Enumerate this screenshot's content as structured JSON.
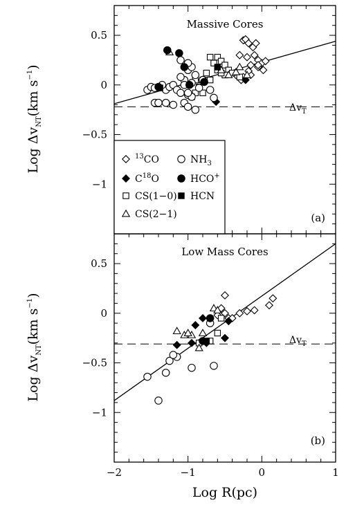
{
  "figure": {
    "x_label": "Log R(pc)",
    "y_label": "Log Δv",
    "y_label_sub": "NT",
    "y_label_unit": "(km s",
    "y_label_exp": "−1",
    "y_label_close": ")"
  },
  "chart_data": [
    {
      "type": "scatter",
      "panel": "a",
      "title": "Massive Cores",
      "panel_label": "(a)",
      "xlim": [
        -2,
        1
      ],
      "ylim": [
        -1.5,
        0.8
      ],
      "x_ticks": [
        "−2",
        "−1",
        "0",
        "1"
      ],
      "y_ticks": [
        "0.5",
        "0",
        "−0.5",
        "−1"
      ],
      "y_tick_values": [
        0.5,
        0,
        -0.5,
        -1
      ],
      "thermal_line": {
        "y": -0.22,
        "label": "Δv",
        "label_sub": "T"
      },
      "fit_line": {
        "x": [
          -2,
          1
        ],
        "y": [
          -0.19,
          0.44
        ]
      },
      "legend": [
        {
          "marker": "diamond-open",
          "pre": "",
          "sup": "13",
          "text": "CO",
          "sup2": ""
        },
        {
          "marker": "diamond-filled",
          "pre": "C",
          "sup": "18",
          "text": "O",
          "sup2": ""
        },
        {
          "marker": "square-open",
          "pre": "",
          "sup": "",
          "text": "CS(1−0)",
          "sup2": ""
        },
        {
          "marker": "triangle-open",
          "pre": "",
          "sup": "",
          "text": "CS(2−1)",
          "sup2": ""
        },
        {
          "marker": "circle-open",
          "pre": "",
          "sup": "",
          "text": "NH",
          "sub": "3",
          "sup2": ""
        },
        {
          "marker": "circle-filled",
          "pre": "",
          "sup": "",
          "text": "HCO",
          "sup2": "+"
        },
        {
          "marker": "square-filled",
          "pre": "",
          "sup": "",
          "text": "HCN",
          "sup2": ""
        }
      ],
      "series": [
        {
          "marker": "diamond-open",
          "x": [
            -0.25,
            -0.22,
            -0.18,
            -0.12,
            -0.08,
            -0.3,
            -0.2,
            -0.1,
            -0.05,
            0.0,
            -0.15,
            -0.05,
            0.02,
            -0.35,
            -0.25,
            -0.15,
            -0.05,
            0.05,
            -0.28,
            -0.18
          ],
          "y": [
            0.45,
            0.46,
            0.42,
            0.38,
            0.42,
            0.3,
            0.28,
            0.3,
            0.25,
            0.22,
            0.2,
            0.18,
            0.15,
            0.1,
            0.08,
            0.1,
            0.2,
            0.24,
            0.05,
            0.14
          ]
        },
        {
          "marker": "diamond-filled",
          "x": [
            -0.62,
            -0.22
          ],
          "y": [
            -0.17,
            0.05
          ]
        },
        {
          "marker": "square-open",
          "x": [
            -0.7,
            -0.6,
            -0.65,
            -0.55,
            -0.5,
            -0.6,
            -0.45,
            -0.75,
            -0.7,
            -0.8,
            -0.9,
            -1.0,
            -0.85,
            -0.9,
            -0.95,
            -0.8,
            -0.5,
            -0.55,
            -0.4,
            -0.3
          ],
          "y": [
            0.28,
            0.28,
            0.22,
            0.24,
            0.2,
            0.15,
            0.15,
            0.12,
            0.05,
            0.05,
            0.05,
            0.0,
            -0.02,
            -0.08,
            -0.12,
            -0.08,
            0.1,
            0.12,
            0.12,
            0.08
          ]
        },
        {
          "marker": "triangle-open",
          "x": [
            -1.25,
            -0.35,
            -0.45,
            -0.55,
            -0.3,
            -0.2,
            -0.8
          ],
          "y": [
            0.33,
            0.13,
            0.1,
            0.15,
            0.18,
            0.1,
            0.05
          ]
        },
        {
          "marker": "circle-open",
          "x": [
            -1.55,
            -1.5,
            -1.45,
            -1.4,
            -1.3,
            -1.25,
            -1.2,
            -1.15,
            -1.1,
            -1.05,
            -1.0,
            -0.95,
            -1.0,
            -0.9,
            -1.05,
            -1.1,
            -1.0,
            -0.95,
            -1.2,
            -1.3,
            -1.45,
            -1.35,
            -1.1,
            -1.0,
            -0.9,
            -0.8,
            -0.7,
            -0.65,
            -1.0,
            -0.95,
            -1.05,
            -0.85
          ],
          "y": [
            -0.05,
            -0.02,
            -0.18,
            -0.18,
            -0.05,
            -0.02,
            0.0,
            -0.05,
            -0.08,
            -0.18,
            -0.1,
            -0.12,
            -0.22,
            -0.25,
            0.05,
            0.08,
            0.15,
            0.18,
            -0.2,
            -0.18,
            -0.03,
            0.0,
            0.25,
            0.22,
            0.1,
            0.05,
            -0.05,
            -0.13,
            -0.08,
            0.02,
            0.0,
            -0.03
          ]
        },
        {
          "marker": "circle-filled",
          "x": [
            -1.28,
            -1.12,
            -1.05,
            -0.98,
            -0.78,
            -1.4
          ],
          "y": [
            0.35,
            0.32,
            0.18,
            0.0,
            0.03,
            -0.02
          ]
        },
        {
          "marker": "square-filled",
          "x": [
            -1.38,
            -0.6
          ],
          "y": [
            -0.03,
            0.18
          ]
        }
      ]
    },
    {
      "type": "scatter",
      "panel": "b",
      "title": "Low Mass Cores",
      "panel_label": "(b)",
      "xlim": [
        -2,
        1
      ],
      "ylim": [
        -1.5,
        0.8
      ],
      "x_ticks": [
        "−2",
        "−1",
        "0",
        "1"
      ],
      "y_ticks": [
        "0.5",
        "0",
        "−0.5",
        "−1"
      ],
      "y_tick_values": [
        0.5,
        0,
        -0.5,
        -1
      ],
      "thermal_line": {
        "y": -0.31,
        "label": "Δv",
        "label_sub": "T"
      },
      "fit_line": {
        "x": [
          -2,
          1
        ],
        "y": [
          -0.88,
          0.7
        ]
      },
      "series": [
        {
          "marker": "diamond-open",
          "x": [
            -0.5,
            -0.55,
            -0.5,
            -0.45,
            -0.4,
            -0.3,
            -0.2,
            -0.1,
            0.1,
            0.15,
            -0.6
          ],
          "y": [
            0.18,
            0.05,
            0.0,
            -0.05,
            -0.05,
            0.0,
            0.02,
            0.03,
            0.08,
            0.15,
            -0.02
          ]
        },
        {
          "marker": "diamond-filled",
          "x": [
            -0.9,
            -0.85,
            -0.75,
            -0.95,
            -1.15,
            -0.5,
            -0.45,
            -0.8
          ],
          "y": [
            -0.12,
            -0.3,
            -0.3,
            -0.3,
            -0.32,
            -0.25,
            -0.08,
            -0.05
          ]
        },
        {
          "marker": "square-open",
          "x": [
            -0.85,
            -0.7,
            -0.6,
            -0.55
          ],
          "y": [
            -0.3,
            -0.28,
            -0.2,
            -0.05
          ]
        },
        {
          "marker": "triangle-open",
          "x": [
            -1.15,
            -1.05,
            -0.95,
            -1.0,
            -0.85,
            -0.65,
            -0.6,
            -0.8
          ],
          "y": [
            -0.18,
            -0.22,
            -0.22,
            -0.2,
            -0.35,
            0.05,
            0.03,
            -0.2
          ]
        },
        {
          "marker": "circle-open",
          "x": [
            -1.55,
            -1.4,
            -1.3,
            -1.25,
            -1.15,
            -1.2,
            -0.95,
            -0.65,
            -0.7
          ],
          "y": [
            -0.64,
            -0.88,
            -0.6,
            -0.48,
            -0.44,
            -0.42,
            -0.55,
            -0.53,
            -0.1
          ]
        },
        {
          "marker": "circle-filled",
          "x": [
            -0.7,
            -0.8
          ],
          "y": [
            -0.05,
            -0.28
          ]
        },
        {
          "marker": "square-filled",
          "x": [
            -0.75
          ],
          "y": [
            -0.28
          ]
        }
      ]
    }
  ]
}
